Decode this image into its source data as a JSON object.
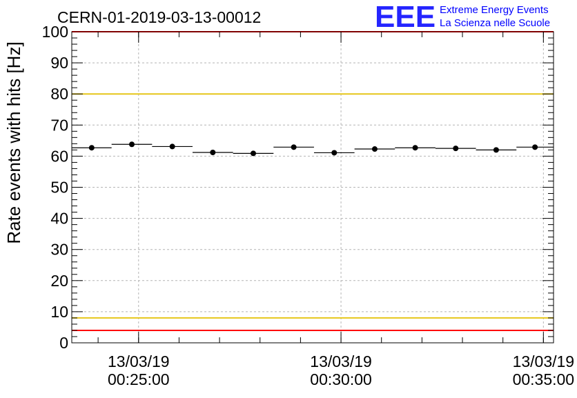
{
  "chart_data": {
    "type": "scatter",
    "title": "CERN-01-2019-03-13-00012",
    "ylabel": "Rate events with hits [Hz]",
    "xlabel": "",
    "ylim": [
      0,
      100
    ],
    "y_ticks": [
      0,
      10,
      20,
      30,
      40,
      50,
      60,
      70,
      80,
      90,
      100
    ],
    "x_ticks": [
      {
        "value": "00:25:00",
        "date": "13/03/19",
        "time": "00:25:00"
      },
      {
        "value": "00:30:00",
        "date": "13/03/19",
        "time": "00:30:00"
      },
      {
        "value": "00:35:00",
        "date": "13/03/19",
        "time": "00:35:00"
      }
    ],
    "x_range": [
      "00:23:21",
      "00:35:15"
    ],
    "grid": true,
    "points": [
      {
        "start": "00:23:21",
        "end": "00:24:20",
        "y": 62.7,
        "err": 0.7
      },
      {
        "start": "00:24:20",
        "end": "00:25:20",
        "y": 63.8,
        "err": 0.7
      },
      {
        "start": "00:25:20",
        "end": "00:26:20",
        "y": 63.1,
        "err": 0.7
      },
      {
        "start": "00:26:20",
        "end": "00:27:20",
        "y": 61.2,
        "err": 0.7
      },
      {
        "start": "00:27:20",
        "end": "00:28:20",
        "y": 60.9,
        "err": 0.7
      },
      {
        "start": "00:28:20",
        "end": "00:29:20",
        "y": 62.9,
        "err": 0.7
      },
      {
        "start": "00:29:20",
        "end": "00:30:20",
        "y": 61.1,
        "err": 0.7
      },
      {
        "start": "00:30:20",
        "end": "00:31:20",
        "y": 62.3,
        "err": 0.7
      },
      {
        "start": "00:31:20",
        "end": "00:32:20",
        "y": 62.7,
        "err": 0.7
      },
      {
        "start": "00:32:20",
        "end": "00:33:20",
        "y": 62.5,
        "err": 0.7
      },
      {
        "start": "00:33:20",
        "end": "00:34:20",
        "y": 62.0,
        "err": 0.7
      },
      {
        "start": "00:34:20",
        "end": "00:35:15",
        "y": 62.9,
        "err": 0.7
      }
    ],
    "reference_lines": [
      {
        "y": 4,
        "color": "#ff0000"
      },
      {
        "y": 8,
        "color": "#e6c619"
      },
      {
        "y": 80,
        "color": "#e6c619"
      },
      {
        "y": 100,
        "color": "#ff0000"
      }
    ],
    "marker_color": "#000000"
  },
  "logo": {
    "text": "EEE",
    "line1": "Extreme Energy Events",
    "line2": "La Scienza nelle Scuole",
    "color": "#0000ff"
  }
}
